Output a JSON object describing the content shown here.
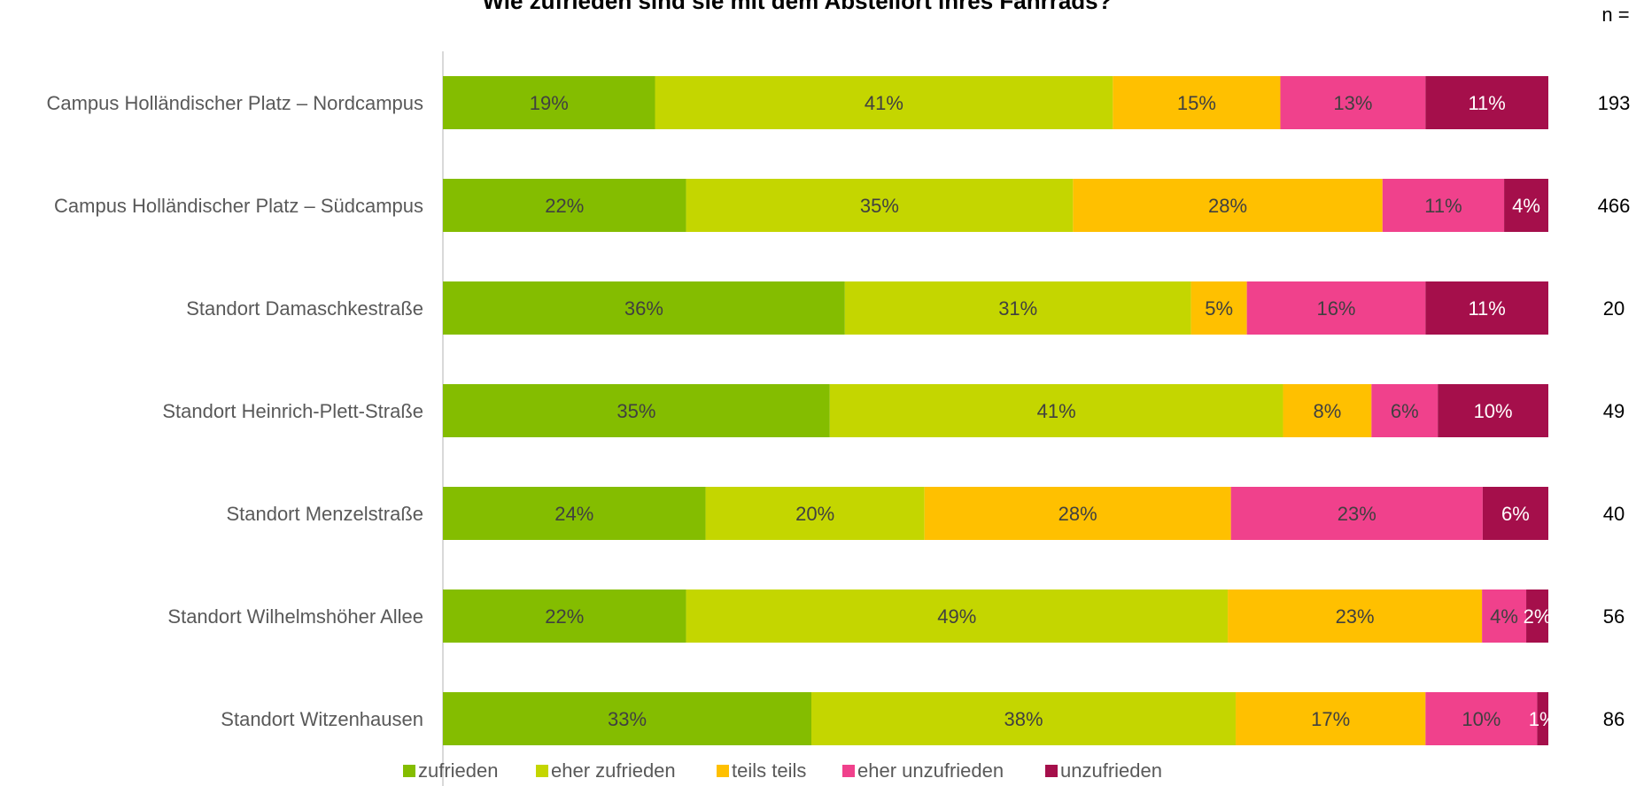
{
  "chart_data": {
    "type": "bar",
    "orientation": "horizontal",
    "stacked": true,
    "title": "Wie zufrieden sind sie mit dem Abstellort ihres Fahrrads?",
    "n_header": "n =",
    "categories": [
      "Campus Holländischer Platz – Nordcampus",
      "Campus Holländischer Platz – Südcampus",
      "Standort Damaschkestraße",
      "Standort Heinrich-Plett-Straße",
      "Standort Menzelstraße",
      "Standort Wilhelmshöher Allee",
      "Standort Witzenhausen"
    ],
    "n_values": [
      "193",
      "466",
      "20",
      "49",
      "40",
      "56",
      "86"
    ],
    "series": [
      {
        "name": "zufrieden",
        "color": "#84bd00",
        "label_color": "#404040",
        "values": [
          19,
          22,
          36,
          35,
          24,
          22,
          33
        ]
      },
      {
        "name": "eher zufrieden",
        "color": "#c4d600",
        "label_color": "#404040",
        "values": [
          41,
          35,
          31,
          41,
          20,
          49,
          38
        ]
      },
      {
        "name": "teils teils",
        "color": "#ffc000",
        "label_color": "#404040",
        "values": [
          15,
          28,
          5,
          8,
          28,
          23,
          17
        ]
      },
      {
        "name": "eher unzufrieden",
        "color": "#f0418c",
        "label_color": "#404040",
        "values": [
          13,
          11,
          16,
          6,
          23,
          4,
          10
        ]
      },
      {
        "name": "unzufrieden",
        "color": "#a50f4b",
        "label_color": "#ffffff",
        "values": [
          11,
          4,
          11,
          10,
          6,
          2,
          1
        ]
      }
    ],
    "value_suffix": "%",
    "grid": false,
    "legend_position": "bottom"
  }
}
